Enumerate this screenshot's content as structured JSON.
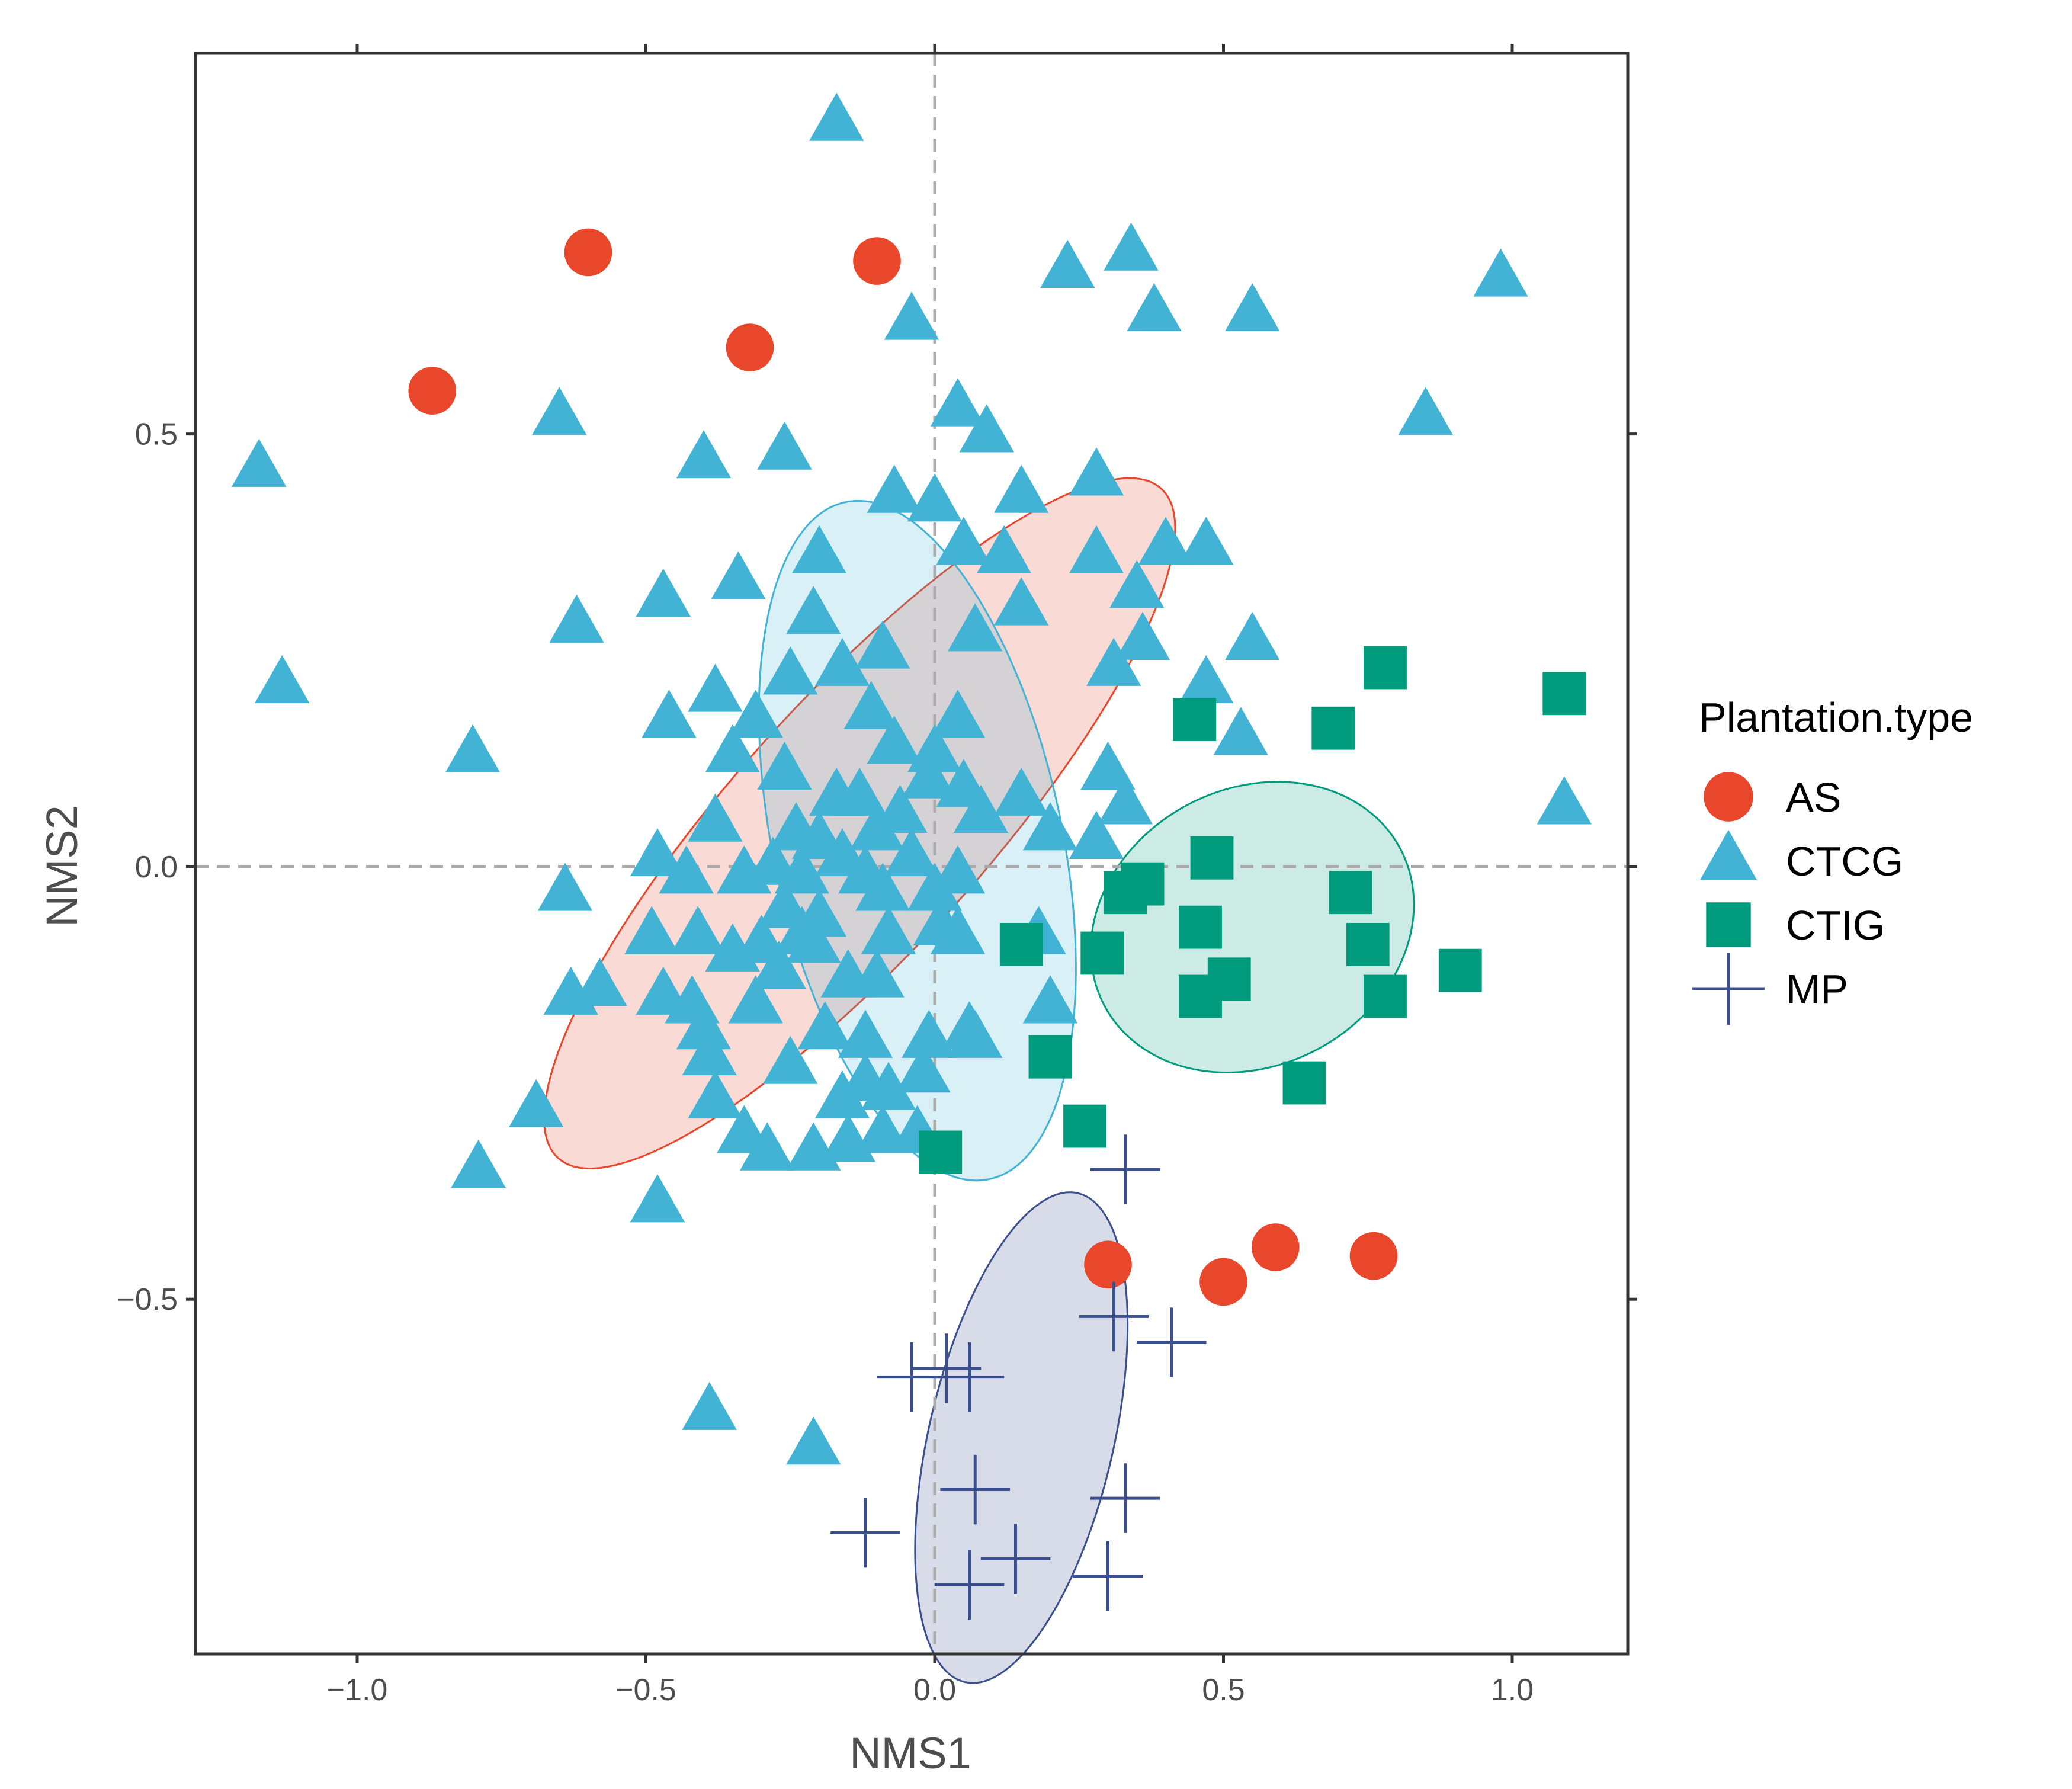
{
  "chart_data": {
    "type": "scatter",
    "title": "",
    "xlabel": "NMS1",
    "ylabel": "NMS2",
    "xlim": [
      -1.28,
      1.2
    ],
    "ylim": [
      -0.91,
      0.94
    ],
    "x_ticks": [
      -1.0,
      -0.5,
      0.0,
      0.5,
      1.0
    ],
    "x_tick_labels": [
      "−1.0",
      "−0.5",
      "0.0",
      "0.5",
      "1.0"
    ],
    "y_ticks": [
      -0.5,
      0.0,
      0.5
    ],
    "y_tick_labels": [
      "−0.5",
      "0.0",
      "0.5"
    ],
    "grid": false,
    "reference_lines": {
      "x": 0,
      "y": 0,
      "style": "dashed",
      "color": "#aaaaaa"
    },
    "legend": {
      "title": "Plantation.type",
      "position": "right"
    },
    "series": [
      {
        "name": "AS",
        "marker": "circle",
        "color": "#e8472c",
        "ellipse": {
          "cx": -0.13,
          "cy": 0.05,
          "rx": 0.78,
          "ry": 0.145,
          "angle_deg": -48
        },
        "points": [
          [
            -0.6,
            0.71
          ],
          [
            -0.1,
            0.7
          ],
          [
            -0.32,
            0.6
          ],
          [
            -0.87,
            0.55
          ],
          [
            0.3,
            -0.46
          ],
          [
            0.5,
            -0.48
          ],
          [
            0.59,
            -0.44
          ],
          [
            0.76,
            -0.45
          ]
        ]
      },
      {
        "name": "CTCG",
        "marker": "triangle",
        "color": "#42b3d5",
        "ellipse": {
          "cx": -0.03,
          "cy": 0.03,
          "rx": 0.25,
          "ry": 0.4,
          "angle_deg": -12
        },
        "points": [
          [
            -0.17,
            0.86
          ],
          [
            0.23,
            0.69
          ],
          [
            0.34,
            0.71
          ],
          [
            0.38,
            0.64
          ],
          [
            0.55,
            0.64
          ],
          [
            0.98,
            0.68
          ],
          [
            -0.04,
            0.63
          ],
          [
            0.04,
            0.53
          ],
          [
            0.09,
            0.5
          ],
          [
            0.85,
            0.52
          ],
          [
            -1.17,
            0.46
          ],
          [
            -0.65,
            0.52
          ],
          [
            -0.4,
            0.47
          ],
          [
            -0.26,
            0.48
          ],
          [
            -0.07,
            0.43
          ],
          [
            0.0,
            0.42
          ],
          [
            0.15,
            0.43
          ],
          [
            0.28,
            0.45
          ],
          [
            -0.2,
            0.36
          ],
          [
            0.05,
            0.37
          ],
          [
            0.12,
            0.36
          ],
          [
            0.28,
            0.36
          ],
          [
            0.4,
            0.37
          ],
          [
            0.47,
            0.37
          ],
          [
            -0.34,
            0.33
          ],
          [
            -0.47,
            0.31
          ],
          [
            -0.21,
            0.29
          ],
          [
            0.15,
            0.3
          ],
          [
            0.35,
            0.32
          ],
          [
            -0.62,
            0.28
          ],
          [
            -0.09,
            0.25
          ],
          [
            0.07,
            0.27
          ],
          [
            0.36,
            0.26
          ],
          [
            0.55,
            0.26
          ],
          [
            -1.13,
            0.21
          ],
          [
            -0.25,
            0.22
          ],
          [
            -0.16,
            0.23
          ],
          [
            0.31,
            0.23
          ],
          [
            0.47,
            0.21
          ],
          [
            -0.38,
            0.2
          ],
          [
            -0.11,
            0.18
          ],
          [
            0.04,
            0.17
          ],
          [
            -0.46,
            0.17
          ],
          [
            -0.31,
            0.17
          ],
          [
            0.53,
            0.15
          ],
          [
            -0.8,
            0.13
          ],
          [
            -0.35,
            0.13
          ],
          [
            -0.07,
            0.14
          ],
          [
            0.0,
            0.13
          ],
          [
            0.3,
            0.11
          ],
          [
            -0.26,
            0.11
          ],
          [
            -0.01,
            0.1
          ],
          [
            0.05,
            0.09
          ],
          [
            -0.13,
            0.08
          ],
          [
            -0.17,
            0.08
          ],
          [
            0.15,
            0.08
          ],
          [
            0.33,
            0.07
          ],
          [
            1.09,
            0.07
          ],
          [
            -0.38,
            0.05
          ],
          [
            -0.06,
            0.06
          ],
          [
            0.08,
            0.06
          ],
          [
            -0.1,
            0.04
          ],
          [
            -0.24,
            0.04
          ],
          [
            -0.2,
            0.03
          ],
          [
            0.2,
            0.04
          ],
          [
            0.28,
            0.03
          ],
          [
            -0.48,
            0.01
          ],
          [
            -0.28,
            0.0
          ],
          [
            -0.16,
            0.01
          ],
          [
            -0.04,
            0.01
          ],
          [
            -0.43,
            -0.01
          ],
          [
            -0.33,
            -0.01
          ],
          [
            -0.23,
            -0.01
          ],
          [
            -0.12,
            -0.01
          ],
          [
            0.04,
            -0.01
          ],
          [
            -0.64,
            -0.03
          ],
          [
            -0.09,
            -0.03
          ],
          [
            0.0,
            -0.03
          ],
          [
            -0.26,
            -0.05
          ],
          [
            -0.2,
            -0.06
          ],
          [
            -0.49,
            -0.08
          ],
          [
            -0.41,
            -0.08
          ],
          [
            -0.23,
            -0.08
          ],
          [
            -0.3,
            -0.09
          ],
          [
            -0.21,
            -0.09
          ],
          [
            -0.08,
            -0.08
          ],
          [
            0.01,
            -0.07
          ],
          [
            0.04,
            -0.08
          ],
          [
            0.18,
            -0.08
          ],
          [
            -0.35,
            -0.1
          ],
          [
            -0.27,
            -0.12
          ],
          [
            -0.15,
            -0.13
          ],
          [
            -0.1,
            -0.13
          ],
          [
            -0.58,
            -0.14
          ],
          [
            -0.63,
            -0.15
          ],
          [
            -0.47,
            -0.15
          ],
          [
            -0.42,
            -0.16
          ],
          [
            -0.31,
            -0.16
          ],
          [
            0.2,
            -0.16
          ],
          [
            -0.4,
            -0.19
          ],
          [
            -0.19,
            -0.19
          ],
          [
            -0.12,
            -0.2
          ],
          [
            -0.01,
            -0.2
          ],
          [
            0.06,
            -0.19
          ],
          [
            0.07,
            -0.2
          ],
          [
            -0.39,
            -0.22
          ],
          [
            -0.25,
            -0.23
          ],
          [
            -0.12,
            -0.25
          ],
          [
            -0.02,
            -0.24
          ],
          [
            -0.69,
            -0.28
          ],
          [
            -0.38,
            -0.27
          ],
          [
            -0.16,
            -0.27
          ],
          [
            -0.08,
            -0.26
          ],
          [
            -0.33,
            -0.31
          ],
          [
            -0.29,
            -0.33
          ],
          [
            -0.21,
            -0.33
          ],
          [
            -0.15,
            -0.32
          ],
          [
            -0.09,
            -0.31
          ],
          [
            -0.03,
            -0.31
          ],
          [
            -0.79,
            -0.35
          ],
          [
            -0.48,
            -0.39
          ],
          [
            -0.39,
            -0.63
          ],
          [
            -0.21,
            -0.67
          ]
        ]
      },
      {
        "name": "CTIG",
        "marker": "square",
        "color": "#009b7d",
        "ellipse": {
          "cx": 0.55,
          "cy": -0.07,
          "rx": 0.29,
          "ry": 0.16,
          "angle_deg": -28
        },
        "points": [
          [
            0.78,
            0.23
          ],
          [
            1.09,
            0.2
          ],
          [
            0.45,
            0.17
          ],
          [
            0.69,
            0.16
          ],
          [
            0.48,
            0.01
          ],
          [
            0.36,
            -0.02
          ],
          [
            0.33,
            -0.03
          ],
          [
            0.72,
            -0.03
          ],
          [
            0.46,
            -0.07
          ],
          [
            0.15,
            -0.09
          ],
          [
            0.29,
            -0.1
          ],
          [
            0.75,
            -0.09
          ],
          [
            0.91,
            -0.12
          ],
          [
            0.51,
            -0.13
          ],
          [
            0.46,
            -0.15
          ],
          [
            0.78,
            -0.15
          ],
          [
            0.2,
            -0.22
          ],
          [
            0.64,
            -0.25
          ],
          [
            0.26,
            -0.3
          ],
          [
            0.01,
            -0.33
          ]
        ]
      },
      {
        "name": "MP",
        "marker": "plus",
        "color": "#3b4f8c",
        "ellipse": {
          "cx": 0.15,
          "cy": -0.66,
          "rx": 0.16,
          "ry": 0.29,
          "angle_deg": 13
        },
        "points": [
          [
            0.33,
            -0.35
          ],
          [
            0.31,
            -0.52
          ],
          [
            0.41,
            -0.55
          ],
          [
            -0.04,
            -0.59
          ],
          [
            0.02,
            -0.58
          ],
          [
            0.06,
            -0.59
          ],
          [
            0.07,
            -0.72
          ],
          [
            0.33,
            -0.73
          ],
          [
            -0.12,
            -0.77
          ],
          [
            0.14,
            -0.8
          ],
          [
            0.06,
            -0.83
          ],
          [
            0.3,
            -0.82
          ]
        ]
      }
    ]
  }
}
